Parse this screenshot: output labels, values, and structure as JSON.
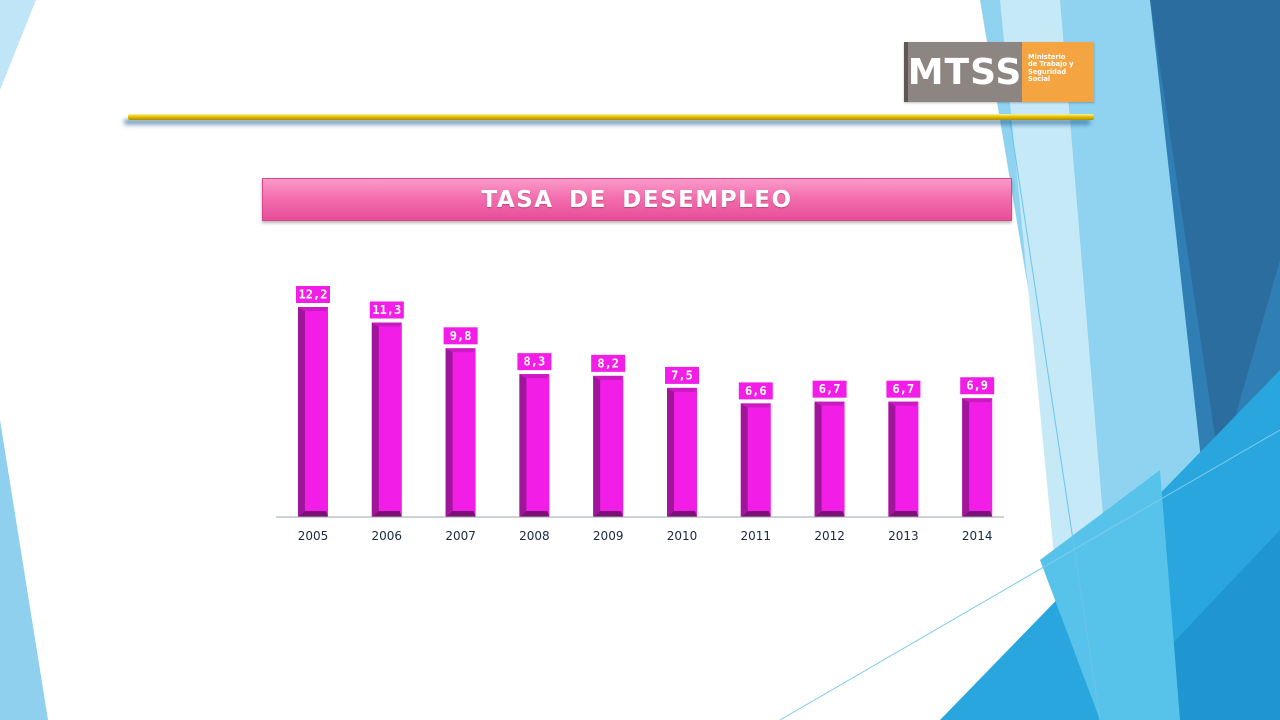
{
  "brand": {
    "logo_text": "MTSS",
    "logo_subtitle": "Ministerio\nde Trabajo y\nSeguridad\nSocial"
  },
  "colors": {
    "bar_front": "#f21ee8",
    "bar_side": "#a0169a",
    "title_banner": "#f36fae",
    "rule": "#e6c200",
    "background_accent": "#2aa3dc"
  },
  "chart_data": {
    "type": "bar",
    "title": "TASA DE DESEMPLEO",
    "xlabel": "",
    "ylabel": "",
    "categories": [
      "2005",
      "2006",
      "2007",
      "2008",
      "2009",
      "2010",
      "2011",
      "2012",
      "2013",
      "2014"
    ],
    "values": [
      12.2,
      11.3,
      9.8,
      8.3,
      8.2,
      7.5,
      6.6,
      6.7,
      6.7,
      6.9
    ],
    "data_labels": [
      "12,2",
      "11,3",
      "9,8",
      "8,3",
      "8,2",
      "7,5",
      "6,6",
      "6,7",
      "6,7",
      "6,9"
    ],
    "ylim": [
      0,
      12.2
    ],
    "grid": false,
    "legend": "none"
  }
}
